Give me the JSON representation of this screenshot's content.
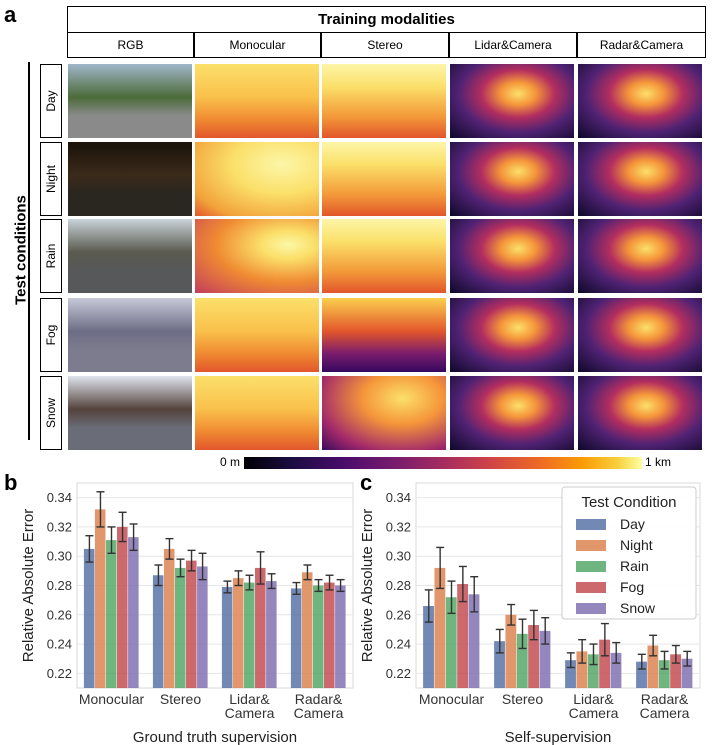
{
  "panel_labels": {
    "a": "a",
    "b": "b",
    "c": "c"
  },
  "figure_a": {
    "title": "Training modalities",
    "columns": [
      "RGB",
      "Monocular",
      "Stereo",
      "Lidar&Camera",
      "Radar&Camera"
    ],
    "row_group_label": "Test conditions",
    "rows": [
      "Day",
      "Night",
      "Rain",
      "Fog",
      "Snow"
    ],
    "colorbar": {
      "min_label": "0 m",
      "max_label": "1 km"
    },
    "colors": {
      "near": "#000004",
      "mid": "#bc3754",
      "far": "#fcffa4"
    }
  },
  "chart_data": [
    {
      "type": "bar",
      "xlabel": "Ground truth supervision",
      "ylabel": "Relative Absolute Error",
      "ylim": [
        0.21,
        0.35
      ],
      "yticks": [
        "0.22",
        "0.24",
        "0.26",
        "0.28",
        "0.30",
        "0.32",
        "0.34"
      ],
      "categories": [
        "Monocular",
        "Stereo",
        "Lidar& Camera",
        "Radar& Camera"
      ],
      "series": [
        {
          "name": "Day",
          "color": "#5a74a8",
          "values": [
            0.305,
            0.287,
            0.279,
            0.278
          ],
          "err": [
            0.009,
            0.007,
            0.004,
            0.004
          ]
        },
        {
          "name": "Night",
          "color": "#dd8452",
          "values": [
            0.332,
            0.305,
            0.285,
            0.289
          ],
          "err": [
            0.012,
            0.007,
            0.005,
            0.005
          ]
        },
        {
          "name": "Rain",
          "color": "#55a868",
          "values": [
            0.311,
            0.292,
            0.282,
            0.28
          ],
          "err": [
            0.009,
            0.006,
            0.005,
            0.004
          ]
        },
        {
          "name": "Fog",
          "color": "#c44e52",
          "values": [
            0.32,
            0.297,
            0.292,
            0.282
          ],
          "err": [
            0.01,
            0.007,
            0.011,
            0.005
          ]
        },
        {
          "name": "Snow",
          "color": "#8172b3",
          "values": [
            0.313,
            0.293,
            0.283,
            0.28
          ],
          "err": [
            0.009,
            0.009,
            0.005,
            0.004
          ]
        }
      ]
    },
    {
      "type": "bar",
      "xlabel": "Self-supervision",
      "ylabel": "Relative Absolute Error",
      "ylim": [
        0.21,
        0.35
      ],
      "yticks": [
        "0.22",
        "0.24",
        "0.26",
        "0.28",
        "0.30",
        "0.32",
        "0.34"
      ],
      "categories": [
        "Monocular",
        "Stereo",
        "Lidar& Camera",
        "Radar& Camera"
      ],
      "legend": {
        "title": "Test Condition",
        "placement": "top-right"
      },
      "series": [
        {
          "name": "Day",
          "color": "#5a74a8",
          "values": [
            0.266,
            0.242,
            0.229,
            0.228
          ],
          "err": [
            0.011,
            0.008,
            0.005,
            0.005
          ]
        },
        {
          "name": "Night",
          "color": "#dd8452",
          "values": [
            0.292,
            0.26,
            0.235,
            0.239
          ],
          "err": [
            0.014,
            0.007,
            0.008,
            0.007
          ]
        },
        {
          "name": "Rain",
          "color": "#55a868",
          "values": [
            0.272,
            0.247,
            0.233,
            0.229
          ],
          "err": [
            0.011,
            0.01,
            0.007,
            0.006
          ]
        },
        {
          "name": "Fog",
          "color": "#c44e52",
          "values": [
            0.281,
            0.253,
            0.243,
            0.233
          ],
          "err": [
            0.012,
            0.01,
            0.011,
            0.006
          ]
        },
        {
          "name": "Snow",
          "color": "#8172b3",
          "values": [
            0.274,
            0.249,
            0.234,
            0.23
          ],
          "err": [
            0.012,
            0.009,
            0.007,
            0.005
          ]
        }
      ]
    }
  ]
}
